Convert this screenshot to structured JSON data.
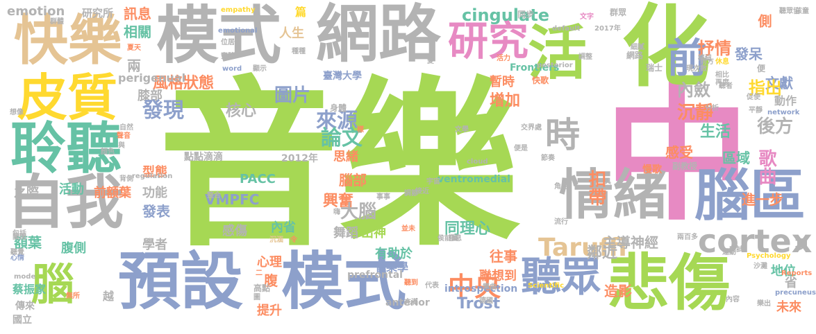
{
  "word_cloud": {
    "words": [
      {
        "text": "音樂",
        "color": "#a6d854"
      },
      {
        "text": "中",
        "color": "#e78ac3"
      },
      {
        "text": "化",
        "color": "#a6d854"
      },
      {
        "text": "模式",
        "color": "#b3b3b3"
      },
      {
        "text": "網路",
        "color": "#b3b3b3"
      },
      {
        "text": "活",
        "color": "#a6d854"
      },
      {
        "text": "快樂",
        "color": "#e5c494"
      },
      {
        "text": "皮質",
        "color": "#ffd92f"
      },
      {
        "text": "聆聽",
        "color": "#66c2a5"
      },
      {
        "text": "自我",
        "color": "#b3b3b3"
      },
      {
        "text": "預設",
        "color": "#8da0cb"
      },
      {
        "text": "模式",
        "color": "#8da0cb"
      },
      {
        "text": "悲傷",
        "color": "#a6d854"
      },
      {
        "text": "情緒",
        "color": "#b3b3b3"
      },
      {
        "text": "腦區",
        "color": "#8da0cb"
      },
      {
        "text": "前",
        "color": "#8da0cb"
      },
      {
        "text": "研究",
        "color": "#e78ac3"
      },
      {
        "text": "時",
        "color": "#b3b3b3"
      },
      {
        "text": "聽眾",
        "color": "#8da0cb"
      },
      {
        "text": "腦",
        "color": "#a6d854"
      },
      {
        "text": "cortex",
        "color": "#b3b3b3"
      },
      {
        "text": "中央",
        "color": "#fc8d62"
      },
      {
        "text": "Taruffi",
        "color": "#e5c494"
      },
      {
        "text": "emotion",
        "color": "#b3b3b3"
      },
      {
        "text": "研究所",
        "color": "#b3b3b3"
      },
      {
        "text": "訊息",
        "color": "#fc8d62"
      },
      {
        "text": "相關",
        "color": "#66c2a5"
      },
      {
        "text": "兩",
        "color": "#b3b3b3"
      },
      {
        "text": "篇",
        "color": "#ffd92f"
      },
      {
        "text": "人生",
        "color": "#e5c494"
      },
      {
        "text": "cingulate",
        "color": "#66c2a5"
      },
      {
        "text": "抒情",
        "color": "#fc8d62"
      },
      {
        "text": "側",
        "color": "#fc8d62"
      },
      {
        "text": "發呆",
        "color": "#8da0cb"
      },
      {
        "text": "文獻",
        "color": "#8da0cb"
      },
      {
        "text": "動作",
        "color": "#b3b3b3"
      },
      {
        "text": "指出",
        "color": "#ffd92f"
      },
      {
        "text": "內斂",
        "color": "#b3b3b3"
      },
      {
        "text": "沉靜",
        "color": "#fc8d62"
      },
      {
        "text": "增加",
        "color": "#fc8d62"
      },
      {
        "text": "暫時",
        "color": "#fc8d62"
      },
      {
        "text": "來源",
        "color": "#8da0cb"
      },
      {
        "text": "圖片",
        "color": "#8da0cb"
      },
      {
        "text": "風格狀態",
        "color": "#fc8d62"
      },
      {
        "text": "膝部",
        "color": "#b3b3b3"
      },
      {
        "text": "perigenual",
        "color": "#b3b3b3"
      },
      {
        "text": "發現",
        "color": "#8da0cb"
      },
      {
        "text": "核心",
        "color": "#b3b3b3"
      },
      {
        "text": "論文",
        "color": "#66c2a5"
      },
      {
        "text": "思緒",
        "color": "#fc8d62"
      },
      {
        "text": "腦部",
        "color": "#fc8d62"
      },
      {
        "text": "生活",
        "color": "#66c2a5"
      },
      {
        "text": "感受",
        "color": "#fc8d62"
      },
      {
        "text": "區域",
        "color": "#66c2a5"
      },
      {
        "text": "歌曲",
        "color": "#e78ac3"
      },
      {
        "text": "後方",
        "color": "#b3b3b3"
      },
      {
        "text": "扣帶",
        "color": "#fc8d62"
      },
      {
        "text": "進一步",
        "color": "#fc8d62"
      },
      {
        "text": "PACC",
        "color": "#66c2a5"
      },
      {
        "text": "VMPFC",
        "color": "#8da0cb"
      },
      {
        "text": "興奮",
        "color": "#fc8d62"
      },
      {
        "text": "大腦",
        "color": "#b3b3b3"
      },
      {
        "text": "出神",
        "color": "#a6d854"
      },
      {
        "text": "同理心",
        "color": "#66c2a5"
      },
      {
        "text": "主導神經",
        "color": "#b3b3b3"
      },
      {
        "text": "鄰近",
        "color": "#b3b3b3"
      },
      {
        "text": "項",
        "color": "#b3b3b3"
      },
      {
        "text": "地位",
        "color": "#66c2a5"
      },
      {
        "text": "省",
        "color": "#b3b3b3"
      },
      {
        "text": "未來",
        "color": "#fc8d62"
      },
      {
        "text": "造影",
        "color": "#fc8d62"
      },
      {
        "text": "Trost",
        "color": "#8da0cb"
      },
      {
        "text": "往事",
        "color": "#fc8d62"
      },
      {
        "text": "聯想到",
        "color": "#fc8d62"
      },
      {
        "text": "有助於",
        "color": "#66c2a5"
      },
      {
        "text": "音樂學",
        "color": "#8da0cb"
      },
      {
        "text": "舞蹈",
        "color": "#b3b3b3"
      },
      {
        "text": "感傷",
        "color": "#b3b3b3"
      },
      {
        "text": "內省",
        "color": "#66c2a5"
      },
      {
        "text": "學者",
        "color": "#b3b3b3"
      },
      {
        "text": "發表",
        "color": "#8da0cb"
      },
      {
        "text": "功能",
        "color": "#b3b3b3"
      },
      {
        "text": "活動",
        "color": "#66c2a5"
      },
      {
        "text": "前額葉",
        "color": "#fc8d62"
      },
      {
        "text": "型態",
        "color": "#fc8d62"
      },
      {
        "text": "之際",
        "color": "#b3b3b3"
      },
      {
        "text": "額葉",
        "color": "#66c2a5"
      },
      {
        "text": "腹側",
        "color": "#66c2a5"
      },
      {
        "text": "心理",
        "color": "#fc8d62"
      },
      {
        "text": "腹",
        "color": "#fc8d62"
      },
      {
        "text": "提升",
        "color": "#fc8d62"
      },
      {
        "text": "高點",
        "color": "#b3b3b3"
      },
      {
        "text": "越",
        "color": "#b3b3b3"
      },
      {
        "text": "蔡振家",
        "color": "#66c2a5"
      },
      {
        "text": "傳來",
        "color": "#b3b3b3"
      },
      {
        "text": "國立",
        "color": "#b3b3b3"
      },
      {
        "text": "prefrontal",
        "color": "#b3b3b3"
      },
      {
        "text": "anterior",
        "color": "#b3b3b3"
      },
      {
        "text": "introspection",
        "color": "#8da0cb"
      },
      {
        "text": "Frontiers",
        "color": "#66c2a5"
      },
      {
        "text": "臺灣大學",
        "color": "#8da0cb"
      },
      {
        "text": "身體",
        "color": "#b3b3b3"
      },
      {
        "text": "快歌",
        "color": "#fc8d62"
      },
      {
        "text": "點點滴滴",
        "color": "#b3b3b3"
      },
      {
        "text": "2012年",
        "color": "#b3b3b3"
      },
      {
        "text": "ventromedial",
        "color": "#66c2a5"
      },
      {
        "text": "副教授",
        "color": "#b3b3b3"
      },
      {
        "text": "慢歌",
        "color": "#fc8d62"
      },
      {
        "text": "同步",
        "color": "#b3b3b3"
      },
      {
        "text": "網路",
        "color": "#b3b3b3"
      },
      {
        "text": "群眾",
        "color": "#b3b3b3"
      },
      {
        "text": "瑞士",
        "color": "#b3b3b3"
      },
      {
        "text": "便",
        "color": "#b3b3b3"
      },
      {
        "text": "聽眾協",
        "color": "#b3b3b3"
      },
      {
        "text": "孩童",
        "color": "#b3b3b3"
      },
      {
        "text": "network",
        "color": "#8da0cb"
      },
      {
        "text": "empathy",
        "color": "#ffd92f"
      },
      {
        "text": "emotional",
        "color": "#8da0cb"
      },
      {
        "text": "default",
        "color": "#b3b3b3"
      },
      {
        "text": "2017年",
        "color": "#b3b3b3"
      },
      {
        "text": "posterior",
        "color": "#b3b3b3"
      },
      {
        "text": "Psychology",
        "color": "#ffd92f"
      },
      {
        "text": "Scientific",
        "color": "#ffd92f"
      },
      {
        "text": "Reports",
        "color": "#fc8d62"
      },
      {
        "text": "precuneus",
        "color": "#8da0cb"
      },
      {
        "text": "regulation",
        "color": "#b3b3b3"
      },
      {
        "text": "cloud",
        "color": "#b3b3b3"
      },
      {
        "text": "word",
        "color": "#8da0cb"
      },
      {
        "text": "mode",
        "color": "#b3b3b3"
      },
      {
        "text": "群體",
        "color": "#b3b3b3"
      },
      {
        "text": "夏天",
        "color": "#fc8d62"
      },
      {
        "text": "位居",
        "color": "#b3b3b3"
      },
      {
        "text": "實驗",
        "color": "#b3b3b3"
      },
      {
        "text": "顯示",
        "color": "#b3b3b3"
      },
      {
        "text": "種種",
        "color": "#b3b3b3"
      },
      {
        "text": "活力",
        "color": "#fc8d62"
      },
      {
        "text": "調整",
        "color": "#b3b3b3"
      },
      {
        "text": "細膩",
        "color": "#b3b3b3"
      },
      {
        "text": "休息",
        "color": "#ffd92f"
      },
      {
        "text": "相比",
        "color": "#b3b3b3"
      },
      {
        "text": "現次數",
        "color": "#b3b3b3"
      },
      {
        "text": "再度",
        "color": "#b3b3b3"
      },
      {
        "text": "聽者",
        "color": "#b3b3b3"
      },
      {
        "text": "促使",
        "color": "#b3b3b3"
      },
      {
        "text": "平靜",
        "color": "#b3b3b3"
      },
      {
        "text": "分析",
        "color": "#b3b3b3"
      },
      {
        "text": "前方",
        "color": "#b3b3b3"
      },
      {
        "text": "樞紐",
        "color": "#b3b3b3"
      },
      {
        "text": "文學",
        "color": "#b3b3b3"
      },
      {
        "text": "文字",
        "color": "#e78ac3"
      },
      {
        "text": "便是",
        "color": "#b3b3b3"
      },
      {
        "text": "交界處",
        "color": "#b3b3b3"
      },
      {
        "text": "節奏",
        "color": "#b3b3b3"
      },
      {
        "text": "具",
        "color": "#b3b3b3"
      },
      {
        "text": "角色",
        "color": "#b3b3b3"
      },
      {
        "text": "流行",
        "color": "#b3b3b3"
      },
      {
        "text": "兩百多",
        "color": "#b3b3b3"
      },
      {
        "text": "運動",
        "color": "#b3b3b3"
      },
      {
        "text": "安試",
        "color": "#b3b3b3"
      },
      {
        "text": "沙灘",
        "color": "#b3b3b3"
      },
      {
        "text": "內容",
        "color": "#b3b3b3"
      },
      {
        "text": "樂出",
        "color": "#b3b3b3"
      },
      {
        "text": "樂曲",
        "color": "#b3b3b3"
      },
      {
        "text": "德國",
        "color": "#b3b3b3"
      },
      {
        "text": "充滿",
        "color": "#b3b3b3"
      },
      {
        "text": "代表",
        "color": "#b3b3b3"
      },
      {
        "text": "並未",
        "color": "#fc8d62"
      },
      {
        "text": "聽到",
        "color": "#fc8d62"
      },
      {
        "text": "沉湎",
        "color": "#e5c494"
      },
      {
        "text": "令",
        "color": "#fc8d62"
      },
      {
        "text": "關閉",
        "color": "#b3b3b3"
      },
      {
        "text": "心情",
        "color": "#8da0cb"
      },
      {
        "text": "包括",
        "color": "#b3b3b3"
      },
      {
        "text": "聽覺",
        "color": "#b3b3b3"
      },
      {
        "text": "無所",
        "color": "#fc8d62"
      },
      {
        "text": "背側",
        "color": "#b3b3b3"
      },
      {
        "text": "顏色",
        "color": "#b3b3b3"
      },
      {
        "text": "聲音",
        "color": "#fc8d62"
      },
      {
        "text": "與",
        "color": "#b3b3b3"
      },
      {
        "text": "自然",
        "color": "#b3b3b3"
      },
      {
        "text": "想像",
        "color": "#b3b3b3"
      },
      {
        "text": "整合",
        "color": "#b3b3b3"
      },
      {
        "text": "事事",
        "color": "#b3b3b3"
      },
      {
        "text": "調節",
        "color": "#b3b3b3"
      },
      {
        "text": "接近",
        "color": "#b3b3b3"
      },
      {
        "text": "宇宙",
        "color": "#b3b3b3"
      },
      {
        "text": "嗨",
        "color": "#b3b3b3"
      },
      {
        "text": "樣",
        "color": "#fc8d62"
      },
      {
        "text": "侯前屬",
        "color": "#b3b3b3"
      },
      {
        "text": "息息",
        "color": "#b3b3b3"
      },
      {
        "text": "愛",
        "color": "#b3b3b3"
      },
      {
        "text": "圖",
        "color": "#b3b3b3"
      },
      {
        "text": "二",
        "color": "#fc8d62"
      }
    ]
  }
}
